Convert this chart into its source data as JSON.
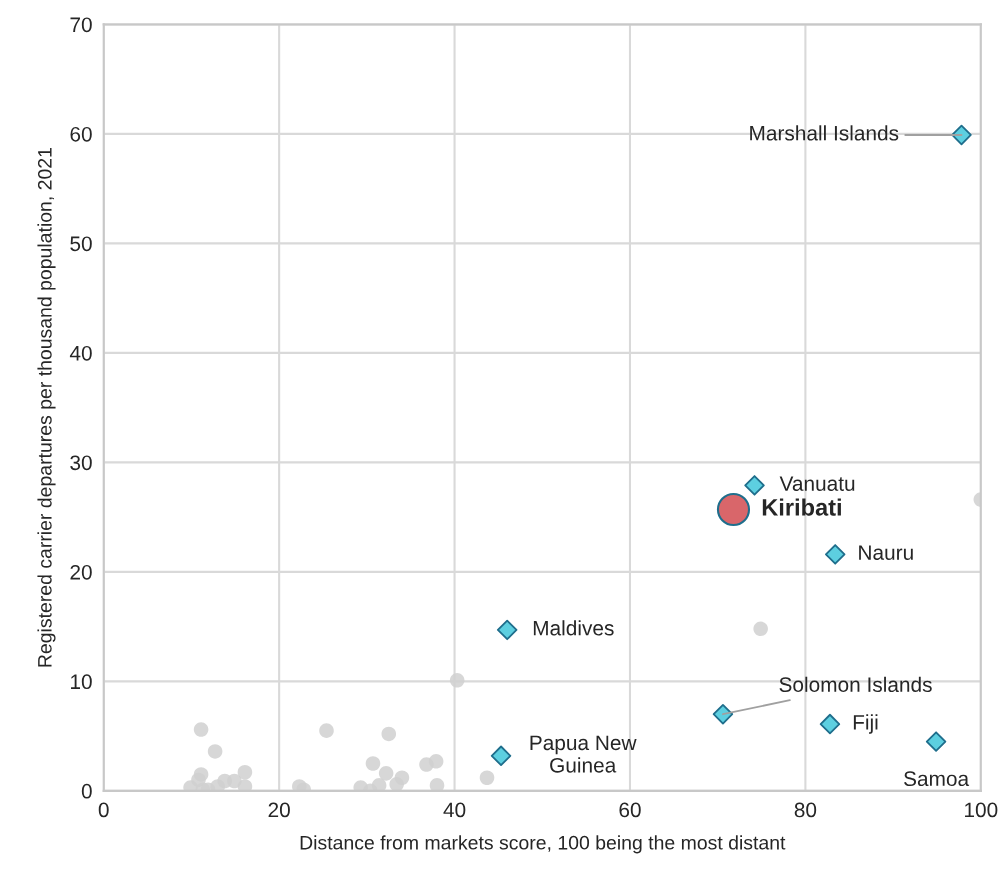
{
  "chart_data": {
    "type": "scatter",
    "xlabel": "Distance from markets score, 100 being the most distant",
    "ylabel": "Registered carrier departures per thousand population, 2021",
    "xlim": [
      0,
      100
    ],
    "xticks": [
      0,
      20,
      40,
      60,
      80,
      100
    ],
    "ylim": [
      0,
      70
    ],
    "yticks": [
      0,
      10,
      20,
      30,
      40,
      50,
      60,
      70
    ],
    "grid": true,
    "legend": false,
    "series": [
      {
        "color": "#d0d0d0",
        "marker": "circle",
        "x": [
          11.1,
          12.7,
          11.1,
          10.8,
          10.2,
          9.9,
          11.3,
          11.9,
          13.0,
          13.8,
          14.9,
          16.1,
          16.1,
          22.3,
          22.8,
          25.4,
          29.3,
          30.4,
          31.4,
          30.7,
          32.2,
          32.5,
          33.4,
          34.0,
          36.8,
          37.9,
          38.0,
          40.3,
          43.7,
          74.9,
          100.0
        ],
        "values": [
          5.6,
          3.6,
          1.5,
          1.0,
          null,
          0.3,
          0.1,
          0.1,
          0.4,
          0.9,
          0.9,
          1.7,
          0.4,
          0.4,
          0.1,
          5.5,
          0.3,
          0.0,
          0.5,
          2.5,
          1.6,
          5.2,
          0.6,
          1.2,
          2.4,
          2.7,
          0.5,
          10.1,
          1.2,
          14.8,
          26.6
        ]
      },
      {
        "color": "#5dcfe0",
        "marker": "diamond",
        "x": [
          97.8,
          74.2,
          83.4,
          46.0,
          70.6,
          82.8,
          94.9,
          45.3
        ],
        "values": [
          59.9,
          27.9,
          21.6,
          14.7,
          7.0,
          6.1,
          4.5,
          3.2
        ]
      },
      {
        "color": "#d9666a",
        "marker": "circle",
        "x": [
          71.8
        ],
        "values": [
          25.7
        ]
      }
    ],
    "annotations": [
      {
        "text": "Marshall Islands",
        "x": 97.8,
        "y": 59.9
      },
      {
        "text": "Vanuatu",
        "x": 74.2,
        "y": 27.9
      },
      {
        "text": "Kiribati",
        "x": 71.8,
        "y": 25.7
      },
      {
        "text": "Nauru",
        "x": 83.4,
        "y": 21.6
      },
      {
        "text": "Maldives",
        "x": 46.0,
        "y": 14.7
      },
      {
        "text": "Solomon Islands",
        "x": 70.6,
        "y": 7.0
      },
      {
        "text": "Fiji",
        "x": 82.8,
        "y": 6.1
      },
      {
        "text": "Samoa",
        "x": 94.9,
        "y": 4.5
      },
      {
        "text": "Papua New\nGuinea",
        "x": 45.3,
        "y": 3.2
      }
    ]
  }
}
